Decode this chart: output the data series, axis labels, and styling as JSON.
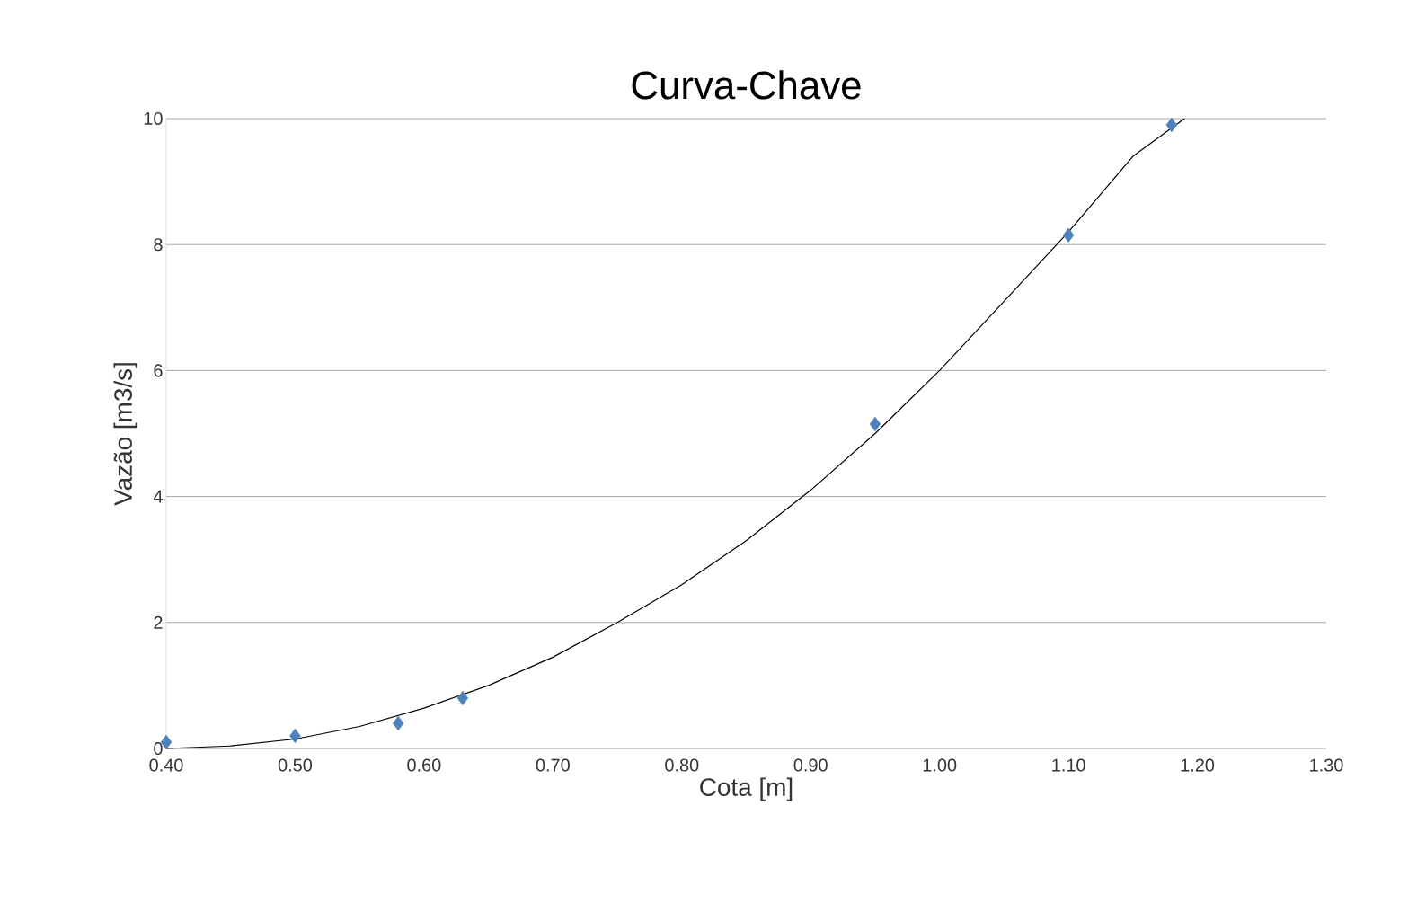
{
  "chart_data": {
    "type": "scatter",
    "title": "Curva-Chave",
    "xlabel": "Cota [m]",
    "ylabel": "Vazão [m3/s]",
    "xlim": [
      0.4,
      1.3
    ],
    "xticks": [
      {
        "value": 0.4,
        "label": "0.40"
      },
      {
        "value": 0.5,
        "label": "0.50"
      },
      {
        "value": 0.6,
        "label": "0.60"
      },
      {
        "value": 0.7,
        "label": "0.70"
      },
      {
        "value": 0.8,
        "label": "0.80"
      },
      {
        "value": 0.9,
        "label": "0.90"
      },
      {
        "value": 1.0,
        "label": "1.00"
      },
      {
        "value": 1.1,
        "label": "1.10"
      },
      {
        "value": 1.2,
        "label": "1.20"
      },
      {
        "value": 1.3,
        "label": "1.30"
      }
    ],
    "ylim": [
      0,
      10
    ],
    "yticks": [
      0,
      2,
      4,
      6,
      8,
      10
    ],
    "grid": "y",
    "series": [
      {
        "type": "scatter",
        "marker": "diamond",
        "color": "#4f81bd",
        "x": [
          0.4,
          0.5,
          0.58,
          0.63,
          0.95,
          1.1,
          1.18
        ],
        "values": [
          0.1,
          0.2,
          0.4,
          0.8,
          5.15,
          8.15,
          9.9
        ]
      },
      {
        "type": "line",
        "marker": "none",
        "line_style": "solid",
        "color": "#000000",
        "x": [
          0.4,
          0.45,
          0.5,
          0.55,
          0.6,
          0.65,
          0.7,
          0.75,
          0.8,
          0.85,
          0.9,
          0.95,
          1.0,
          1.05,
          1.1,
          1.15,
          1.19
        ],
        "values": [
          0,
          0.04,
          0.15,
          0.35,
          0.64,
          1.0,
          1.45,
          2.0,
          2.6,
          3.3,
          4.1,
          5.0,
          6.0,
          7.1,
          8.2,
          9.4,
          10.0
        ]
      }
    ]
  }
}
